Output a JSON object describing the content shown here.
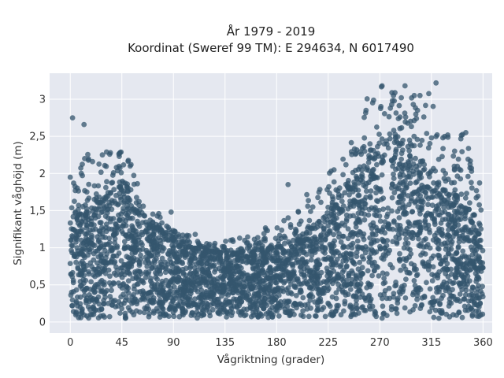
{
  "chart_data": {
    "type": "scatter",
    "title_line1": "År 1979 - 2019",
    "title_line2": "Koordinat (Sweref 99 TM): E 294634, N 6017490",
    "xlabel": "Vågriktning (grader)",
    "ylabel": "Signifikant våghöjd (m)",
    "xlim": [
      -18,
      368
    ],
    "ylim": [
      -0.15,
      3.35
    ],
    "x_ticks": [
      0,
      45,
      90,
      135,
      180,
      225,
      270,
      315,
      360
    ],
    "y_ticks": [
      0,
      0.5,
      1,
      1.5,
      2,
      2.5,
      3
    ],
    "x_tick_labels": [
      "0",
      "45",
      "90",
      "135",
      "180",
      "225",
      "270",
      "315",
      "360"
    ],
    "y_tick_labels": [
      "0",
      "0,5",
      "1",
      "1,5",
      "2",
      "2,5",
      "3"
    ],
    "grid": true,
    "legend": "none",
    "colors": {
      "marker": "#34566e",
      "plot_background": "#e5e8f0",
      "grid": "#ffffff"
    },
    "envelope": {
      "x": [
        0,
        15,
        30,
        45,
        55,
        65,
        80,
        90,
        105,
        120,
        135,
        150,
        165,
        180,
        195,
        210,
        225,
        240,
        255,
        270,
        285,
        300,
        315,
        330,
        345,
        360
      ],
      "dense_max_y": [
        1.4,
        1.5,
        1.65,
        1.75,
        1.55,
        1.35,
        1.2,
        1.1,
        1.0,
        0.95,
        0.92,
        0.93,
        0.97,
        1.02,
        1.1,
        1.25,
        1.45,
        1.75,
        2.05,
        2.35,
        2.5,
        2.35,
        1.95,
        1.7,
        1.5,
        1.35
      ],
      "outer_max_y": [
        2.0,
        2.3,
        2.3,
        2.3,
        2.1,
        1.5,
        1.45,
        1.25,
        1.2,
        1.05,
        1.1,
        1.15,
        1.25,
        1.35,
        1.45,
        1.85,
        2.0,
        2.3,
        2.95,
        3.2,
        3.18,
        3.05,
        3.22,
        2.55,
        2.55,
        2.05
      ],
      "min_y": 0.05
    },
    "highlight_points": [
      {
        "x": 2,
        "y": 2.75
      },
      {
        "x": 12,
        "y": 2.66
      },
      {
        "x": 272,
        "y": 3.18
      },
      {
        "x": 292,
        "y": 3.18
      },
      {
        "x": 319,
        "y": 3.22
      },
      {
        "x": 300,
        "y": 3.05
      },
      {
        "x": 305,
        "y": 3.05
      },
      {
        "x": 281,
        "y": 2.98
      },
      {
        "x": 35,
        "y": 2.28
      },
      {
        "x": 43,
        "y": 2.27
      },
      {
        "x": 53,
        "y": 2.12
      },
      {
        "x": 190,
        "y": 1.85
      },
      {
        "x": 345,
        "y": 2.55
      },
      {
        "x": 320,
        "y": 2.52
      },
      {
        "x": 88,
        "y": 1.48
      },
      {
        "x": 172,
        "y": 1.23
      },
      {
        "x": 140,
        "y": 1.1
      },
      {
        "x": 109,
        "y": 1.18
      },
      {
        "x": 350,
        "y": 2.03
      },
      {
        "x": 230,
        "y": 2.05
      },
      {
        "x": 0,
        "y": 1.95
      },
      {
        "x": 28,
        "y": 2.25
      },
      {
        "x": 258,
        "y": 2.85
      },
      {
        "x": 325,
        "y": 2.48
      }
    ]
  }
}
